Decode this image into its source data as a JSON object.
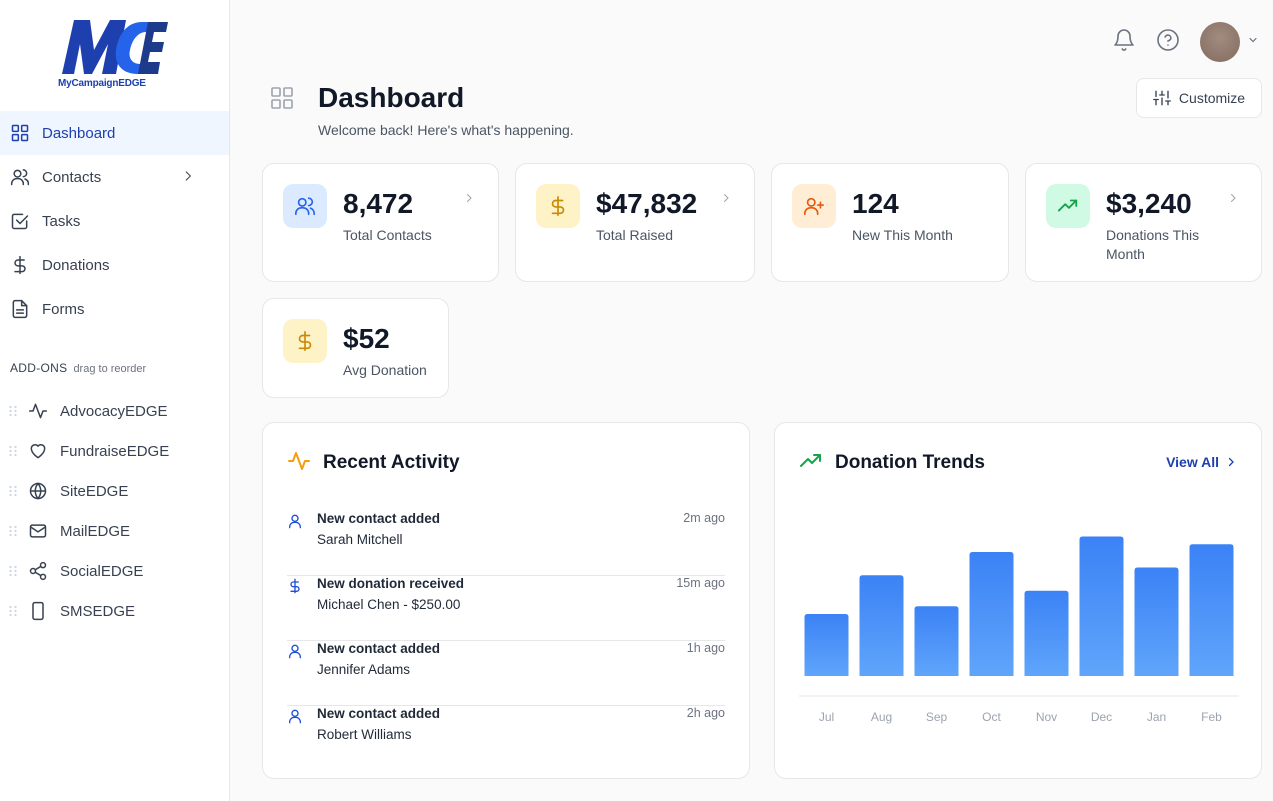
{
  "brand": {
    "logo_initials": "MCE",
    "logo_text": "MyCampaignEDGE"
  },
  "sidebar": {
    "items": [
      {
        "label": "Dashboard",
        "icon": "grid-icon",
        "active": true
      },
      {
        "label": "Contacts",
        "icon": "users-icon",
        "has_submenu": true
      },
      {
        "label": "Tasks",
        "icon": "checkbox-icon"
      },
      {
        "label": "Donations",
        "icon": "dollar-icon"
      },
      {
        "label": "Forms",
        "icon": "document-icon"
      }
    ],
    "addons_title": "ADD-ONS",
    "addons_hint": "drag to reorder",
    "addons": [
      {
        "label": "AdvocacyEDGE",
        "icon": "activity-icon"
      },
      {
        "label": "FundraiseEDGE",
        "icon": "heart-icon"
      },
      {
        "label": "SiteEDGE",
        "icon": "globe-icon"
      },
      {
        "label": "MailEDGE",
        "icon": "mail-icon"
      },
      {
        "label": "SocialEDGE",
        "icon": "share-icon"
      },
      {
        "label": "SMSEDGE",
        "icon": "phone-icon"
      }
    ]
  },
  "header": {
    "title": "Dashboard",
    "subtitle": "Welcome back! Here's what's happening.",
    "customize_label": "Customize"
  },
  "stats": [
    {
      "value": "8,472",
      "label": "Total Contacts",
      "icon": "users-icon",
      "color": "#2563eb",
      "bg": "#dbeafe"
    },
    {
      "value": "$47,832",
      "label": "Total Raised",
      "icon": "dollar-icon",
      "color": "#ca8a04",
      "bg": "#fef3c7"
    },
    {
      "value": "124",
      "label": "New This Month",
      "icon": "user-plus-icon",
      "color": "#ea580c",
      "bg": "#ffedd5"
    },
    {
      "value": "$3,240",
      "label": "Donations This Month",
      "icon": "trending-up-icon",
      "color": "#16a34a",
      "bg": "#d1fae5"
    },
    {
      "value": "$52",
      "label": "Avg Donation",
      "icon": "dollar-icon",
      "color": "#ca8a04",
      "bg": "#fef3c7"
    }
  ],
  "recent_activity": {
    "title": "Recent Activity",
    "items": [
      {
        "title": "New contact added",
        "detail": "Sarah Mitchell",
        "time": "2m ago",
        "icon": "user-icon"
      },
      {
        "title": "New donation received",
        "detail": "Michael Chen - $250.00",
        "time": "15m ago",
        "icon": "dollar-icon"
      },
      {
        "title": "New contact added",
        "detail": "Jennifer Adams",
        "time": "1h ago",
        "icon": "user-icon"
      },
      {
        "title": "New contact added",
        "detail": "Robert Williams",
        "time": "2h ago",
        "icon": "user-icon"
      }
    ]
  },
  "donation_trends": {
    "title": "Donation Trends",
    "view_all_label": "View All"
  },
  "chart_data": {
    "type": "bar",
    "title": "Donation Trends",
    "categories": [
      "Jul",
      "Aug",
      "Sep",
      "Oct",
      "Nov",
      "Dec",
      "Jan",
      "Feb"
    ],
    "values": [
      40,
      65,
      45,
      80,
      55,
      90,
      70,
      85
    ],
    "ylim": [
      0,
      100
    ],
    "grid": false,
    "bar_color_top": "#3b82f6",
    "bar_color_bottom": "#60a5fa"
  }
}
